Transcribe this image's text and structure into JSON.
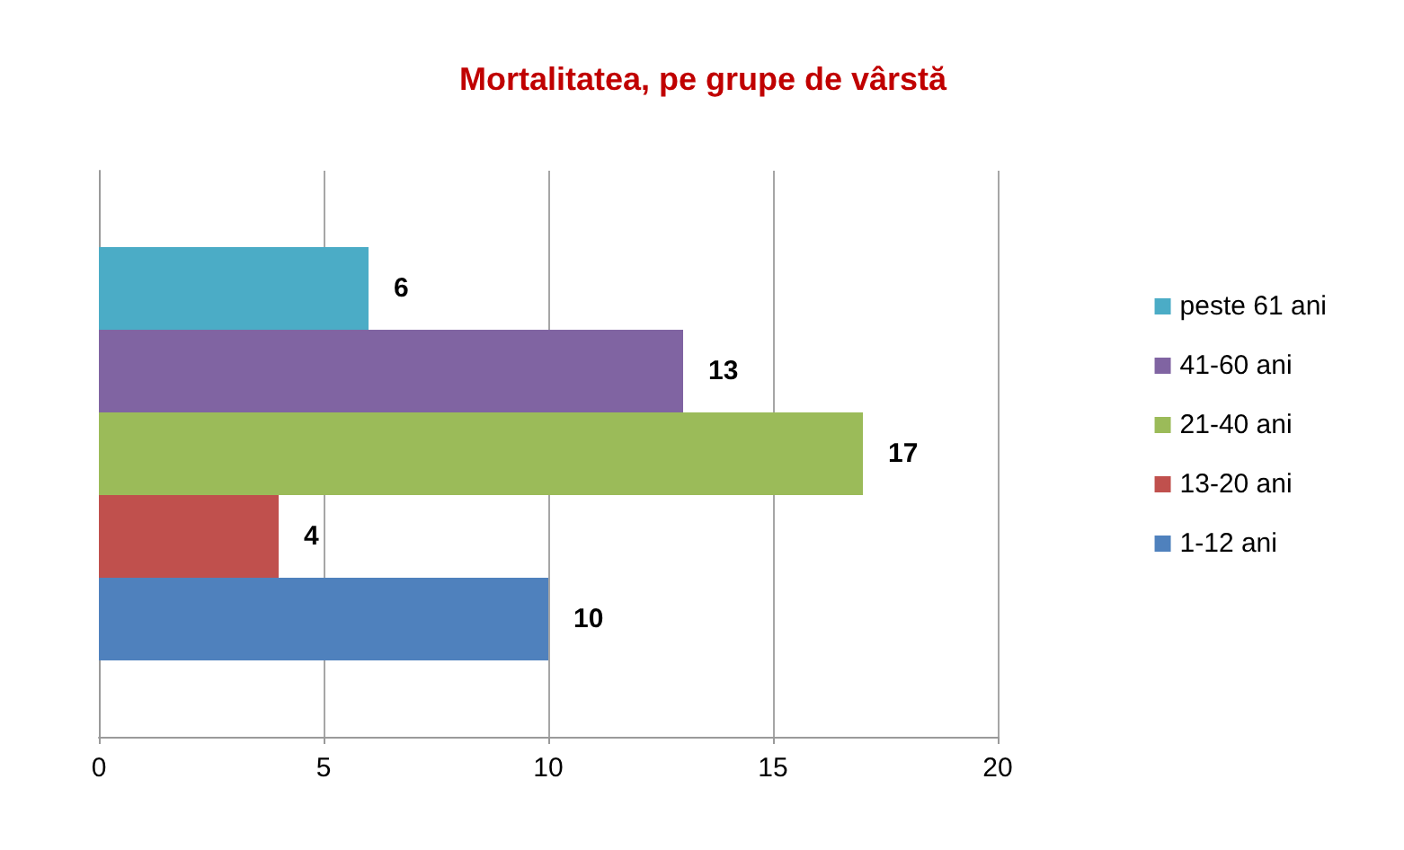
{
  "chart_data": {
    "type": "bar",
    "orientation": "horizontal",
    "title": "Mortalitatea, pe grupe de vârstă",
    "categories": [
      null
    ],
    "series": [
      {
        "name": "1-12 ani",
        "color": "#4f81bd",
        "values": [
          10
        ]
      },
      {
        "name": "13-20 ani",
        "color": "#c0504d",
        "values": [
          4
        ]
      },
      {
        "name": "21-40 ani",
        "color": "#9bbb59",
        "values": [
          17
        ]
      },
      {
        "name": "41-60 ani",
        "color": "#8064a2",
        "values": [
          13
        ]
      },
      {
        "name": "peste 61 ani",
        "color": "#4bacc6",
        "values": [
          6
        ]
      }
    ],
    "xlim": [
      0,
      20
    ],
    "xticks": [
      0,
      5,
      10,
      15,
      20
    ],
    "grid": "x",
    "legend": "right",
    "data_labels": true
  }
}
